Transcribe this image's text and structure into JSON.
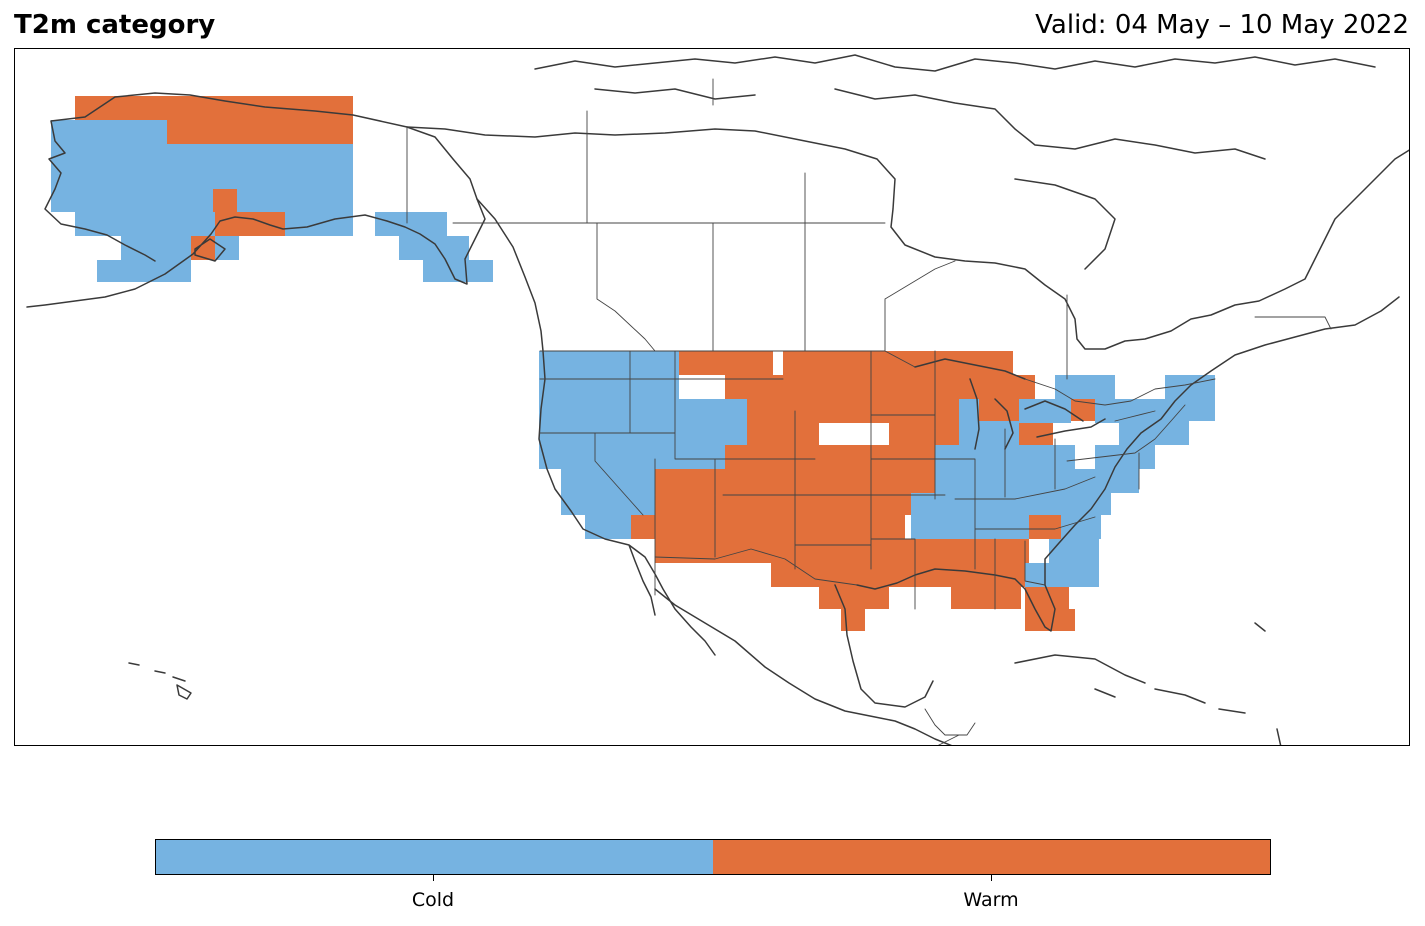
{
  "title": "T2m category",
  "valid_text": "Valid: 04 May – 10 May 2022",
  "colors": {
    "cold": "#76b3e1",
    "warm": "#e2703b",
    "coastline": "#3a3a3a",
    "border": "#444444"
  },
  "legend": {
    "categories": [
      {
        "label": "Cold",
        "color": "#76b3e1"
      },
      {
        "label": "Warm",
        "color": "#e2703b"
      }
    ]
  },
  "map": {
    "projection": "PlateCarree",
    "extent_lon": [
      -170,
      -50
    ],
    "extent_lat": [
      10,
      75
    ],
    "grid_resolution_deg": 2,
    "regions": [
      {
        "name": "Alaska",
        "dominant_category": "Cold",
        "northern_fringe": "Warm"
      },
      {
        "name": "Southeast Alaska / BC coast",
        "dominant_category": "Cold"
      },
      {
        "name": "Pacific Northwest",
        "dominant_category": "Cold"
      },
      {
        "name": "California & Great Basin",
        "dominant_category": "Cold"
      },
      {
        "name": "Northern Plains",
        "dominant_category": "Warm"
      },
      {
        "name": "Southwest & Southern Plains",
        "dominant_category": "Warm"
      },
      {
        "name": "Upper Midwest",
        "dominant_category": "Warm"
      },
      {
        "name": "Ohio Valley & Northeast",
        "dominant_category": "Cold"
      },
      {
        "name": "Deep South & Florida",
        "dominant_category": "Warm"
      }
    ]
  }
}
